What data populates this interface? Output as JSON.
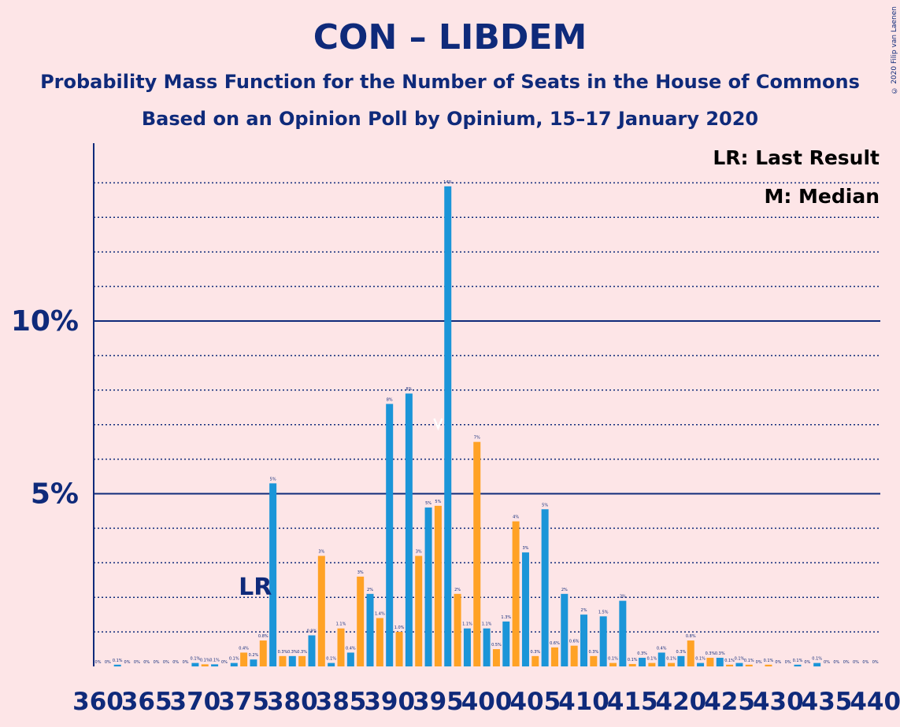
{
  "title": "CON – LIBDEM",
  "subtitle": "Probability Mass Function for the Number of Seats in the House of Commons",
  "subtitle2": "Based on an Opinion Poll by Opinium, 15–17 January 2020",
  "copyright": "© 2020 Filip van Laenen",
  "legend": {
    "last_result": "LR: Last Result",
    "median": "M: Median"
  },
  "colors": {
    "background": "#FDE5E7",
    "text": "#0F2A7A",
    "blue": "#1B95D8",
    "orange": "#FFA225"
  },
  "chart_data": {
    "type": "bar",
    "title": "CON – LIBDEM",
    "x_tick_labels": [
      "360",
      "365",
      "370",
      "375",
      "380",
      "385",
      "390",
      "395",
      "400",
      "405",
      "410",
      "415",
      "420",
      "425",
      "430",
      "435",
      "440"
    ],
    "y_tick_labels": [
      "5%",
      "10%"
    ],
    "y_ticks": [
      5,
      10
    ],
    "ylim": [
      0,
      15
    ],
    "gridlines": "dotted every 1%, solid at 5% and 10%",
    "last_result_seat": 377,
    "last_result_marker": "LR",
    "median_seat": 395,
    "bar_colors_alternate": [
      "blue",
      "orange"
    ],
    "seats": [
      360,
      361,
      362,
      363,
      364,
      365,
      366,
      367,
      368,
      369,
      370,
      371,
      372,
      373,
      374,
      375,
      376,
      377,
      378,
      379,
      380,
      381,
      382,
      383,
      384,
      385,
      386,
      387,
      388,
      389,
      390,
      391,
      392,
      393,
      394,
      395,
      396,
      397,
      398,
      399,
      400,
      401,
      402,
      403,
      404,
      405,
      406,
      407,
      408,
      409,
      410,
      411,
      412,
      413,
      414,
      415,
      416,
      417,
      418,
      419,
      420,
      421,
      422,
      423,
      424,
      425,
      426,
      427,
      428,
      429,
      430,
      431,
      432,
      433,
      434,
      435,
      436,
      437,
      438,
      439,
      440
    ],
    "values": [
      0.0,
      0.0,
      0.05,
      0.0,
      0.0,
      0.0,
      0.0,
      0.0,
      0.0,
      0.0,
      0.1,
      0.06,
      0.06,
      0.0,
      0.1,
      0.4,
      0.2,
      0.75,
      5.3,
      0.3,
      0.3,
      0.3,
      0.9,
      3.2,
      0.1,
      1.1,
      0.4,
      2.6,
      2.1,
      1.4,
      7.6,
      1.0,
      7.9,
      3.2,
      4.6,
      4.65,
      13.9,
      2.1,
      1.1,
      6.5,
      1.1,
      0.5,
      1.3,
      4.2,
      3.3,
      0.3,
      4.55,
      0.55,
      2.1,
      0.6,
      1.5,
      0.3,
      1.45,
      0.1,
      1.9,
      0.07,
      0.25,
      0.1,
      0.4,
      0.1,
      0.3,
      0.75,
      0.1,
      0.25,
      0.25,
      0.05,
      0.1,
      0.05,
      0.0,
      0.05,
      0.0,
      0.0,
      0.05,
      0.0,
      0.1,
      0.0,
      0.0,
      0.0,
      0.0,
      0.0,
      0.0
    ],
    "value_labels": [
      "0%",
      "0%",
      "0.1%",
      "0%",
      "0%",
      "0%",
      "0%",
      "0%",
      "0%",
      "0%",
      "0.1%",
      "0.1%",
      "0.1%",
      "0%",
      "0.1%",
      "0.4%",
      "0.2%",
      "0.8%",
      "5%",
      "0.3%",
      "0.3%",
      "0.3%",
      "0.9%",
      "3%",
      "0.1%",
      "1.1%",
      "0.4%",
      "3%",
      "2%",
      "1.4%",
      "8%",
      "1.0%",
      "8%",
      "3%",
      "5%",
      "5%",
      "14%",
      "2%",
      "1.1%",
      "7%",
      "1.1%",
      "0.5%",
      "1.3%",
      "4%",
      "3%",
      "0.3%",
      "5%",
      "0.6%",
      "2%",
      "0.6%",
      "2%",
      "0.3%",
      "1.5%",
      "0.1%",
      "2%",
      "0.1%",
      "0.3%",
      "0.1%",
      "0.4%",
      "0.1%",
      "0.3%",
      "0.8%",
      "0.1%",
      "0.3%",
      "0.3%",
      "0.1%",
      "0.1%",
      "0.1%",
      "0%",
      "0.1%",
      "0%",
      "0%",
      "0.1%",
      "0%",
      "0.1%",
      "0%",
      "0%",
      "0%",
      "0%",
      "0%",
      "0%"
    ]
  }
}
